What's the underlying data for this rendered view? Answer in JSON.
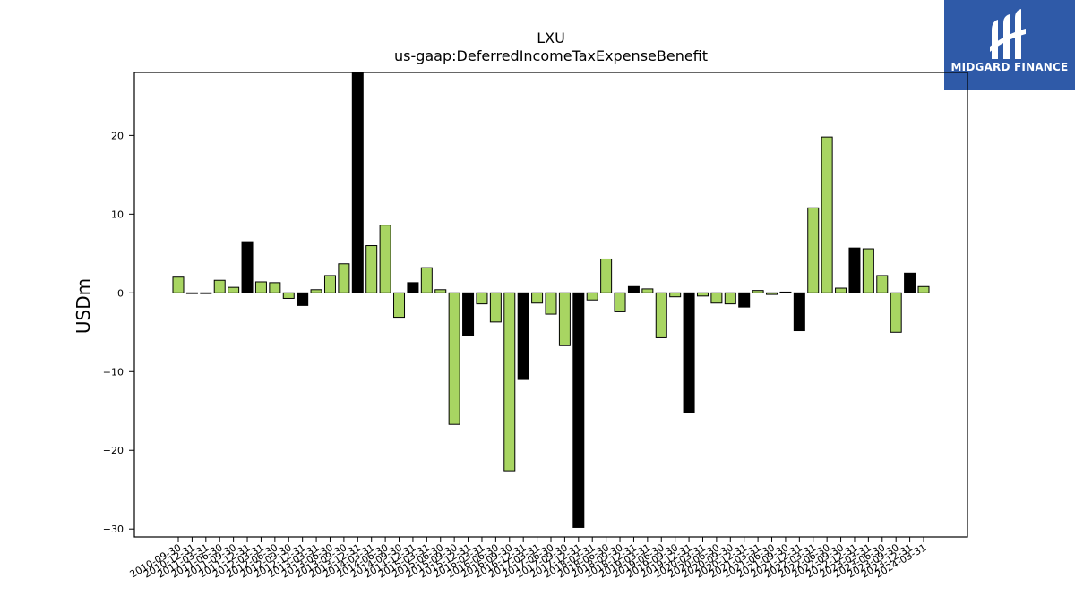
{
  "brand": {
    "name": "MIDGARD FINANCE",
    "bg_color": "#2f5aa8"
  },
  "chart_data": {
    "type": "bar",
    "title": "LXU",
    "subtitle": "us-gaap:DeferredIncomeTaxExpenseBenefit",
    "ylabel": "USDm",
    "xlabel": "",
    "ylim": [
      -31,
      28
    ],
    "yticks": [
      -30,
      -20,
      -10,
      0,
      10,
      20
    ],
    "grid": false,
    "colors": {
      "default": "#a8d562",
      "highlight": "#000000"
    },
    "categories": [
      "2010-09-30",
      "2010-12-31",
      "2011-03-31",
      "2011-06-30",
      "2011-09-30",
      "2011-12-31",
      "2012-03-31",
      "2012-06-30",
      "2012-09-30",
      "2012-12-31",
      "2013-03-31",
      "2013-06-30",
      "2013-09-30",
      "2013-12-31",
      "2014-03-31",
      "2014-06-30",
      "2014-09-30",
      "2014-12-31",
      "2015-03-31",
      "2015-06-30",
      "2015-09-30",
      "2015-12-31",
      "2016-03-31",
      "2016-06-30",
      "2016-09-30",
      "2016-12-31",
      "2017-03-31",
      "2017-06-30",
      "2017-09-30",
      "2017-12-31",
      "2018-03-31",
      "2018-06-30",
      "2018-09-30",
      "2018-12-31",
      "2019-03-31",
      "2019-06-30",
      "2019-09-30",
      "2019-12-31",
      "2020-03-31",
      "2020-06-30",
      "2020-09-30",
      "2020-12-31",
      "2021-03-31",
      "2021-06-30",
      "2021-09-30",
      "2021-12-31",
      "2022-03-31",
      "2022-06-30",
      "2022-09-30",
      "2022-12-31",
      "2023-03-31",
      "2023-06-30",
      "2023-09-30",
      "2023-12-31",
      "2024-03-31"
    ],
    "values": [
      2.0,
      0.0,
      0.0,
      1.6,
      0.7,
      6.5,
      1.4,
      1.3,
      -0.7,
      -1.6,
      0.4,
      2.2,
      3.7,
      28,
      6.0,
      8.6,
      -3.1,
      1.3,
      3.2,
      0.4,
      -16.7,
      -5.4,
      -1.4,
      -3.7,
      -22.6,
      -11.0,
      -1.3,
      -2.7,
      -6.7,
      -29.8,
      -0.9,
      4.3,
      -2.4,
      0.8,
      0.5,
      -5.7,
      -0.5,
      -15.2,
      -0.4,
      -1.3,
      -1.4,
      -1.8,
      0.3,
      -0.2,
      0.1,
      -4.8,
      10.8,
      19.8,
      0.6,
      5.7,
      5.6,
      2.2,
      -5.0,
      2.5,
      0.8
    ],
    "highlight": [
      5,
      9,
      13,
      17,
      21,
      25,
      29,
      33,
      37,
      41,
      45,
      49,
      53
    ]
  }
}
